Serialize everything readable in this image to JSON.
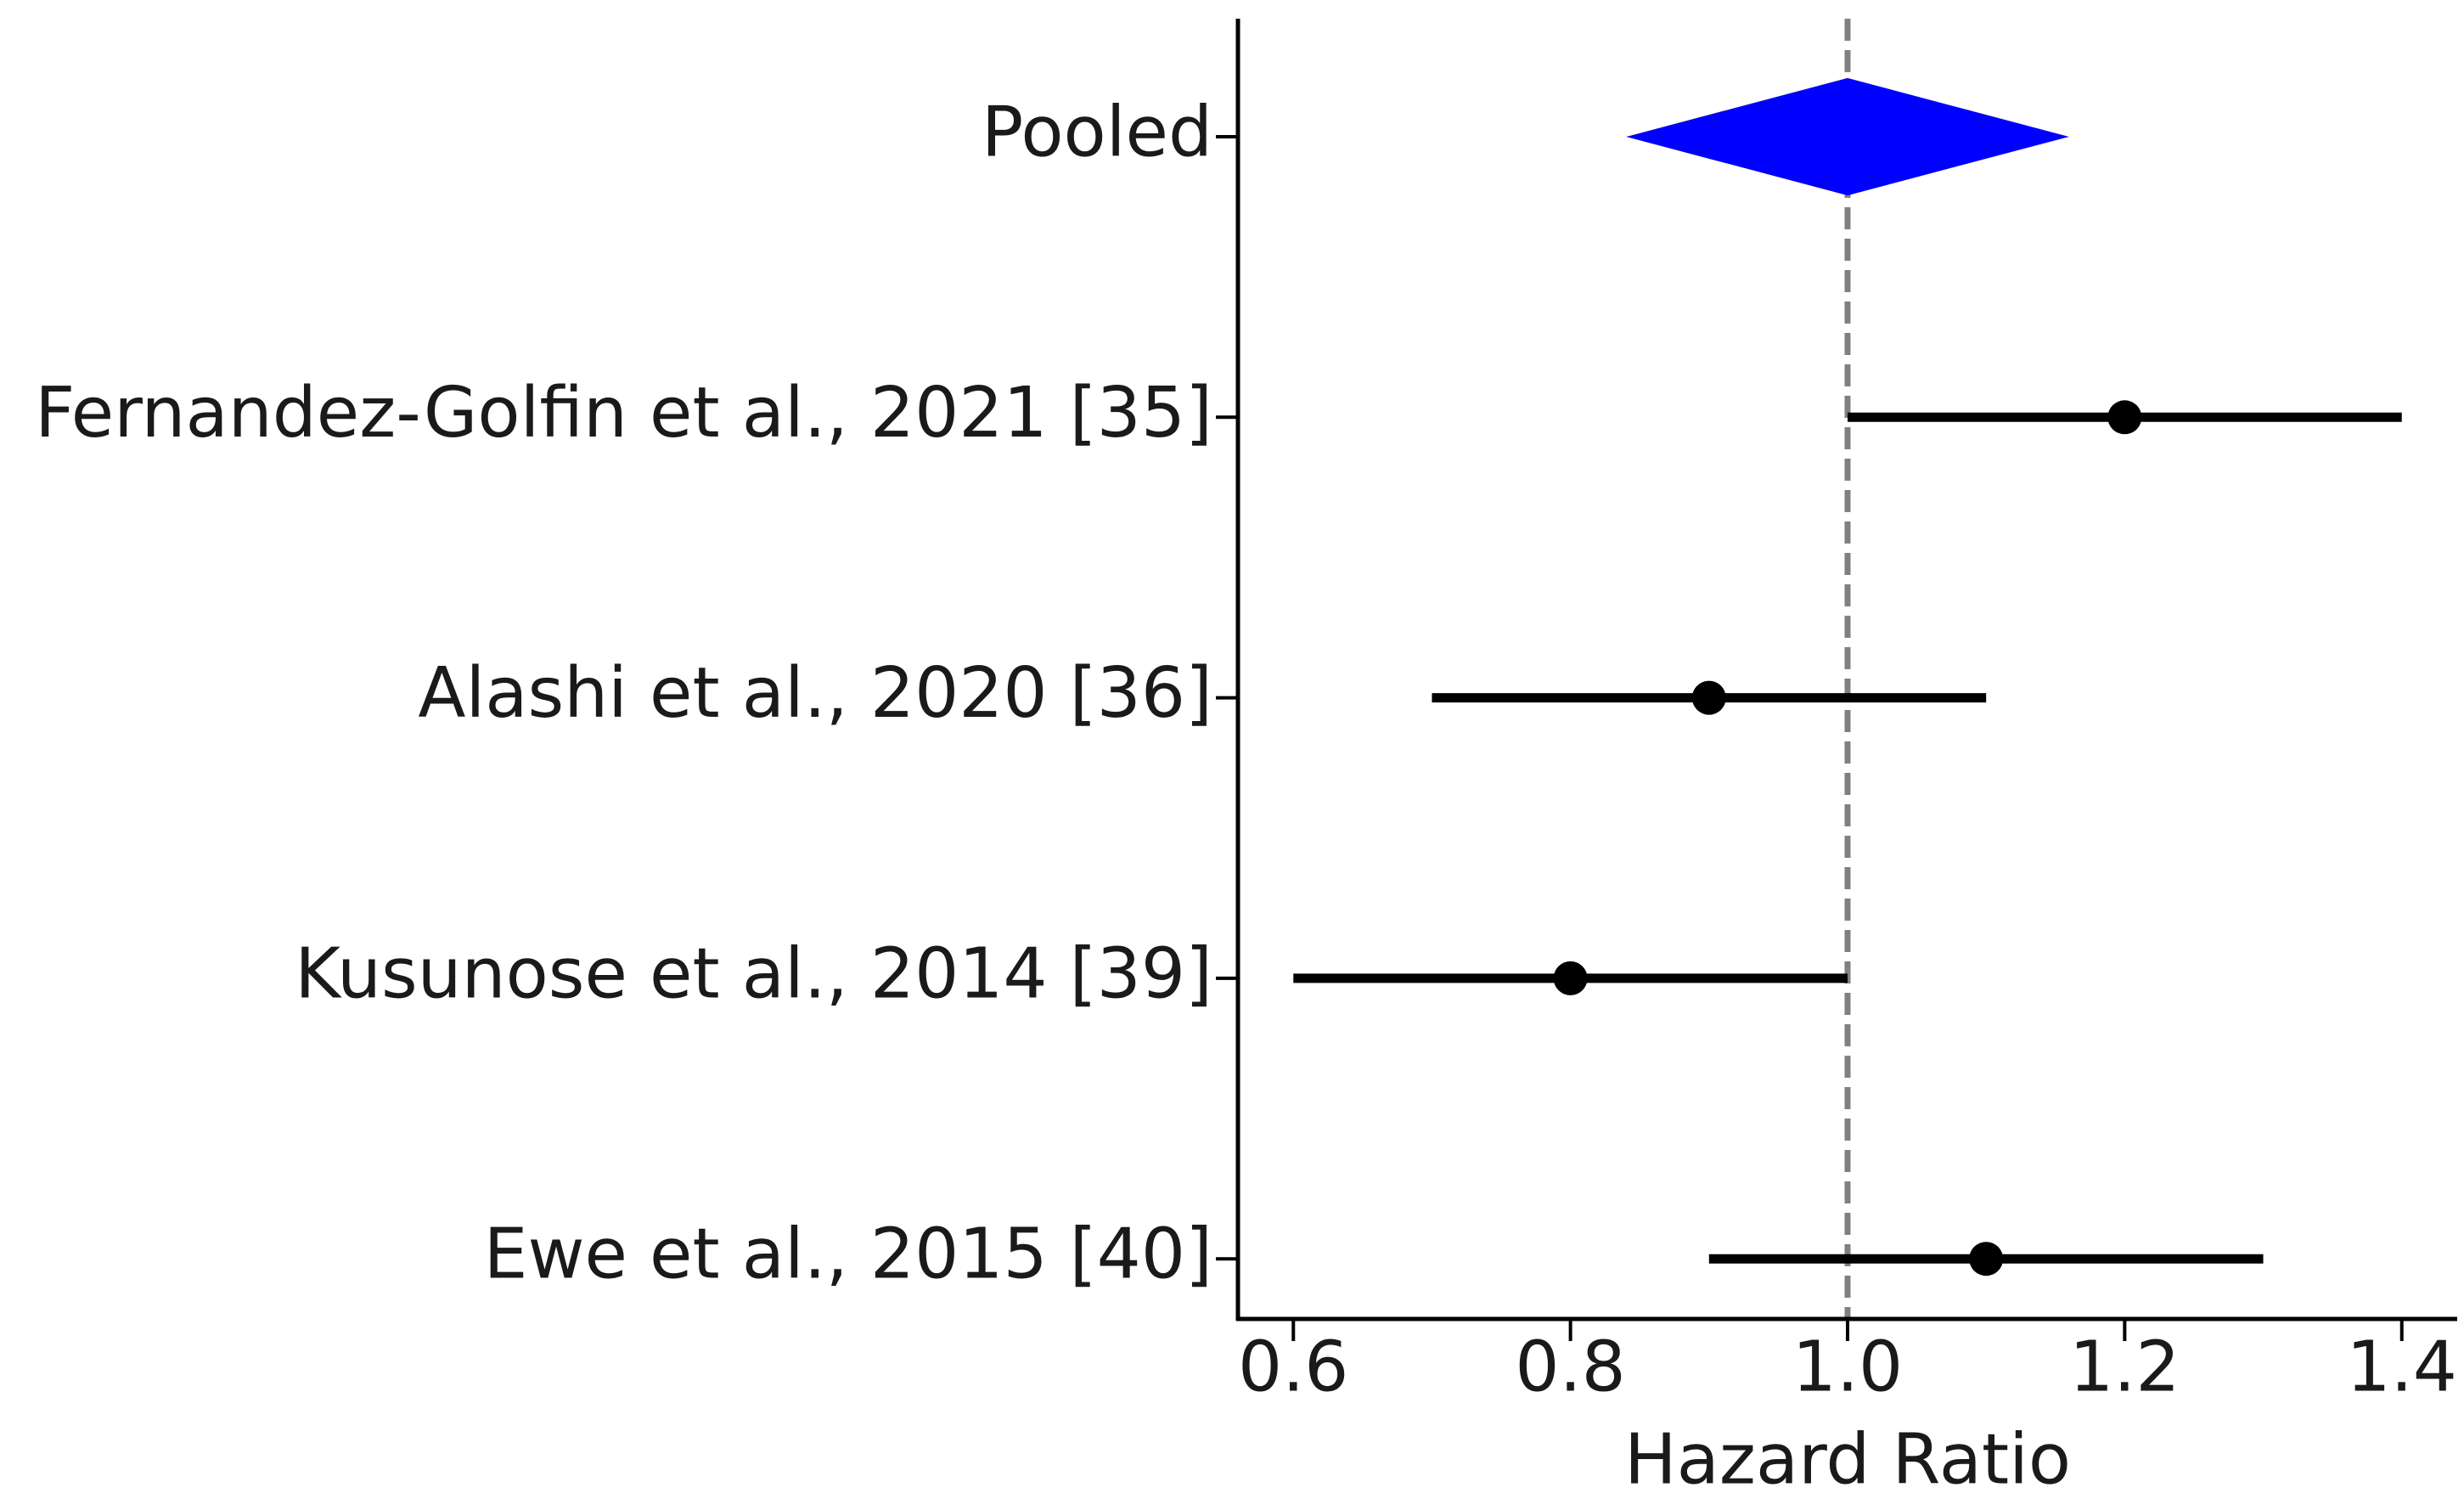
{
  "chart_data": {
    "type": "forest",
    "xlabel": "Hazard Ratio",
    "categories": [
      "Pooled",
      "Fernandez-Golfin et al., 2021 [35]",
      "Alashi et al., 2020 [36]",
      "Kusunose et al., 2014 [39]",
      "Ewe et al., 2015 [40]"
    ],
    "values": [
      1.0,
      1.2,
      0.9,
      0.8,
      1.1
    ],
    "ci_lower": [
      0.845,
      1.0,
      0.7,
      0.6,
      0.9
    ],
    "ci_upper": [
      1.155,
      1.4,
      1.1,
      1.0,
      1.3
    ],
    "marker": [
      "diamond",
      "point",
      "point",
      "point",
      "point"
    ],
    "color": "#000000",
    "diamond_color": "#0000ff",
    "ref_line": 1.0,
    "ref_line_color": "#808080",
    "xlim": [
      0.56,
      1.44
    ],
    "xticks": [
      0.6,
      0.8,
      {
        "value": 1.0,
        "label": "1.0"
      },
      1.2,
      1.4
    ]
  }
}
